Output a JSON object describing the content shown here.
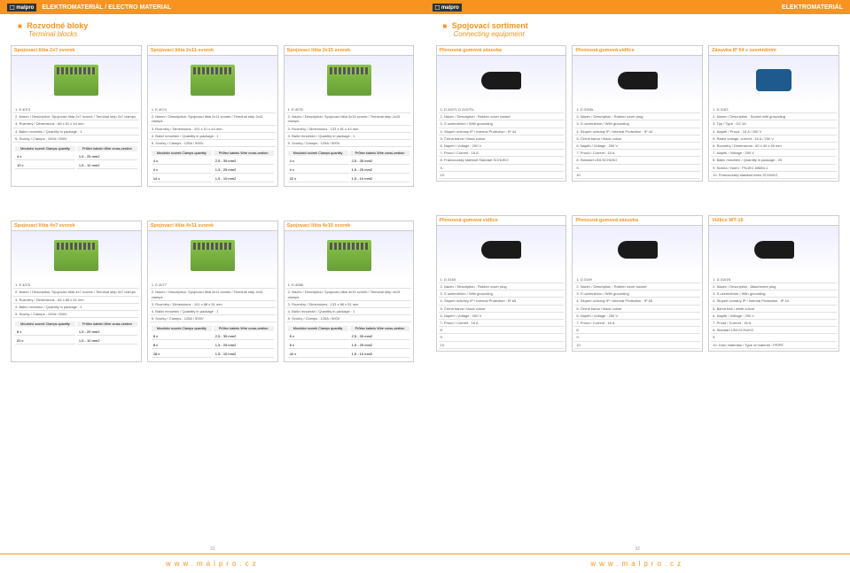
{
  "brand": "malpro",
  "header_left": {
    "cz": "ELEKTROMATERIÁL",
    "en": "/ ELECTRO MATERIAL"
  },
  "header_right": "ELEKTROMATERIÁL",
  "url": "www.malpro.cz",
  "page_left_num": "31",
  "page_right_num": "32",
  "sections": {
    "left_top": {
      "cz": "Rozvodné bloky",
      "en": "Terminal blocks"
    },
    "right_top": {
      "cz": "Spojovací sortiment",
      "en": "Connecting equipment"
    }
  },
  "cards_left_row1": [
    {
      "title": "Spojovací lišta 2x7 svorek",
      "specs": [
        "1. E.4073",
        "2. Název / Description: Spojovací lišta 2x7 svorek / Terminal strip 2x7 clamps",
        "3. Rozměry / Dimensions : 66 x 51 x 44 mm",
        "4. Balicí množství / Quantity in package : 1",
        "5. Svorky / Clamps : 100A / 500V"
      ],
      "table": {
        "h1": "Množství svorek\nClamps quantity",
        "h2": "Průřez kabelu\nWire cross-cestion",
        "rows": [
          [
            "4 x",
            "1,5 - 25 mm2"
          ],
          [
            "10 x",
            "1,5 - 10 mm2"
          ]
        ]
      }
    },
    {
      "title": "Spojovací lišta 2x11 svorek",
      "specs": [
        "1. E.4074",
        "2. Název / Description: Spojovací lišta 2x11 svorek / Terminal strip 2x11 clamps",
        "3. Rozměry / Dimensions : 101 x 51 x 44 mm",
        "4. Balicí množství / Quantity in package : 1",
        "5. Svorky / Clamps : 125A / 500V"
      ],
      "table": {
        "h1": "Množství svorek\nClamps quantity",
        "h2": "Průřez kabelu\nWire cross-cestion",
        "rows": [
          [
            "4 x",
            "2,5 - 35 mm2"
          ],
          [
            "4 x",
            "1,5 - 25 mm2"
          ],
          [
            "14 x",
            "1,5 - 10 mm2"
          ]
        ]
      }
    },
    {
      "title": "Spojovací lišta 2x15 svorek",
      "specs": [
        "1. E.4075",
        "2. Název / Description: Spojovací lišta 2x15 svorek / Terminal strip 2x15 clamps",
        "3. Rozměry / Dimensions : 133 x 51 x 44 mm",
        "4. Balicí množství / Quantity in package : 1",
        "5. Svorky / Clamps : 125A / 500V"
      ],
      "table": {
        "h1": "Množství svorek\nClamps quantity",
        "h2": "Průřez kabelu\nWire cross-cestion",
        "rows": [
          [
            "4 x",
            "2,5 - 35 mm2"
          ],
          [
            "4 x",
            "1,5 - 25 mm2"
          ],
          [
            "22 x",
            "1,5 - 10 mm2"
          ]
        ]
      }
    }
  ],
  "cards_left_row2": [
    {
      "title": "Spojovací lišta 4x7 svorek",
      "specs": [
        "1. E.4076",
        "2. Název / Description: Spojovací lišta 4x7 svorek / Terminal strip 4x7 clamps",
        "3. Rozměry / Dimensions : 66 x 88 x 51 mm",
        "4. Balicí množství / Quantity in package : 1",
        "5. Svorky / Clamps : 100A / 500V"
      ],
      "table": {
        "h1": "Množství svorek\nClamps quantity",
        "h2": "Průřez kabelu\nWire cross-cestion",
        "rows": [
          [
            "8 x",
            "1,5 - 25 mm2"
          ],
          [
            "20 x",
            "1,5 - 10 mm2"
          ]
        ]
      }
    },
    {
      "title": "Spojovací lišta 4x11 svorek",
      "specs": [
        "1. E.4077",
        "2. Název / Description: Spojovací lišta 4x11 svorek / Terminal strip 4x11 clamps",
        "3. Rozměry / Dimensions : 101 x 88 x 51 mm",
        "4. Balicí množství / Quantity in package : 1",
        "5. Svorky / Clamps : 125A / 500V"
      ],
      "table": {
        "h1": "Množství svorek\nClamps quantity",
        "h2": "Průřez kabelu\nWire cross-cestion",
        "rows": [
          [
            "8 x",
            "2,5 - 35 mm2"
          ],
          [
            "8 x",
            "1,5 - 25 mm2"
          ],
          [
            "28 x",
            "1,5 - 10 mm2"
          ]
        ]
      }
    },
    {
      "title": "Spojovací lišta 4x15 svorek",
      "specs": [
        "1. E.4088",
        "2. Název / Description: Spojovací lišta 4x15 svorek / Terminal strip 4x15 clamps",
        "3. Rozměry / Dimensions : 133 x 88 x 51 mm",
        "4. Balicí množství / Quantity in package : 1",
        "5. Svorky / Clamps : 125A / 500V"
      ],
      "table": {
        "h1": "Množství svorek\nClamps quantity",
        "h2": "Průřez kabelu\nWire cross-cestion",
        "rows": [
          [
            "8 x",
            "2,5 - 35 mm2"
          ],
          [
            "8 x",
            "1,5 - 25 mm2"
          ],
          [
            "44 x",
            "1,5 - 10 mm2"
          ]
        ]
      }
    }
  ],
  "cards_right_row1": [
    {
      "title": "Přenosná gumová zásuvka",
      "specs": [
        "1. D.3157L          D.3157SL",
        "2. Název / Description : Rubber cover socket",
        "3. S uzemněním / With grounding",
        "4. Stupeň ochrany IP / Internal Protection : IP 44",
        "5. Černá barva / black colour",
        "6. Napětí / Voltage : 250 V",
        "7. Proud / Current : 16 A",
        "8. Francouzský standart    Standart SCHUKO",
        "9.",
        "10."
      ]
    },
    {
      "title": "Přenosná gumová vidlice",
      "specs": [
        "1. D.3158L",
        "2. Název / Description : Rubber cover plug",
        "3. S uzemněním / With grounding",
        "4. Stupeň ochrany IP / Internal Protection : IP 44",
        "5. Černá barva / black colour",
        "6. Napětí / Voltage : 250 V",
        "7. Proud / Current : 16 A",
        "8. Standart UNI-SCHUKO",
        "9.",
        "10."
      ]
    },
    {
      "title": "Zásuvka IP 54 s uzemněním",
      "specs": [
        "1. D.3153",
        "2. Název / Description : Socket with grounding",
        "3. Typ / Type : GZ-16",
        "4. Napětí / Proud : 16 A / 250 V",
        "5. Rated voltage, current : 16 A / 250 V",
        "6. Rozměry / Dimensions : 60 x 40 x 50 mm",
        "7. Napětí / Voltage : 250 V",
        "8. Balicí množství / Quantity in package : 25",
        "9. Norma / Norm : PN-IEC 60884-1",
        "10. Francouzský standart nebo SCHUKO"
      ]
    }
  ],
  "cards_right_row2": [
    {
      "title": "Přenosná gumová vidlice",
      "specs": [
        "1. D.3148",
        "2. Název / Description : Rubber cover plug",
        "3. S uzemněním / With grounding",
        "4. Stupeň ochrany IP / Internal Protection : IP 65",
        "5. Černá barva / black colour",
        "6. Napětí / Voltage : 250 V",
        "7. Proud / Current : 16 A",
        "8.",
        "9.",
        "10."
      ]
    },
    {
      "title": "Přenosná gumová zásuvka",
      "specs": [
        "1. D.3149",
        "2. Název / Description : Rubber cover socket",
        "3. S uzemněním / With grounding",
        "4. Stupeň ochrany IP / Internal Protection : IP 65",
        "5. Černá barva / black colour",
        "6. Napětí / Voltage : 250 V",
        "7. Proud / Current : 16 A",
        "8.",
        "9.",
        "10."
      ]
    },
    {
      "title": "Vidlice WT-16",
      "specs": [
        "1. D.3101N",
        "2. Název / Description : Attachment plug",
        "3. S uzemněním / With grounding",
        "4. Stupeň ochrany IP / Internal Protection : IP 44",
        "5. Barva bílá / white colour",
        "6. Napětí / Voltage : 250 V",
        "7. Proud / Current : 16 A",
        "8. Standart UNI-SCHUKO",
        "9.",
        "10. Druh materiálu / Type of material : PP/PE"
      ]
    }
  ]
}
